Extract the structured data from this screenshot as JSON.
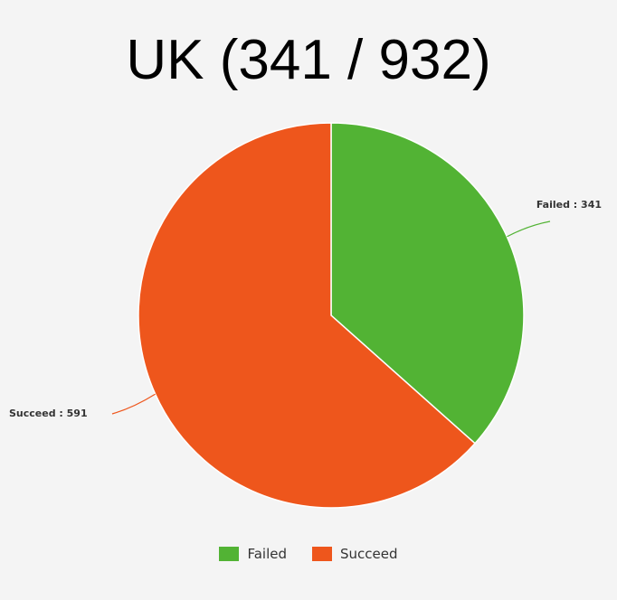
{
  "chart_data": {
    "type": "pie",
    "title": "UK (341 / 932)",
    "slices": [
      {
        "label": "Failed",
        "value": 341,
        "color": "#52b334",
        "data_label": "Failed : 341"
      },
      {
        "label": "Succeed",
        "value": 591,
        "color": "#ee561c",
        "data_label": "Succeed : 591"
      }
    ],
    "start_angle": "12 o'clock",
    "direction": "clockwise",
    "legend": {
      "position": "bottom",
      "items": [
        "Failed",
        "Succeed"
      ]
    }
  }
}
